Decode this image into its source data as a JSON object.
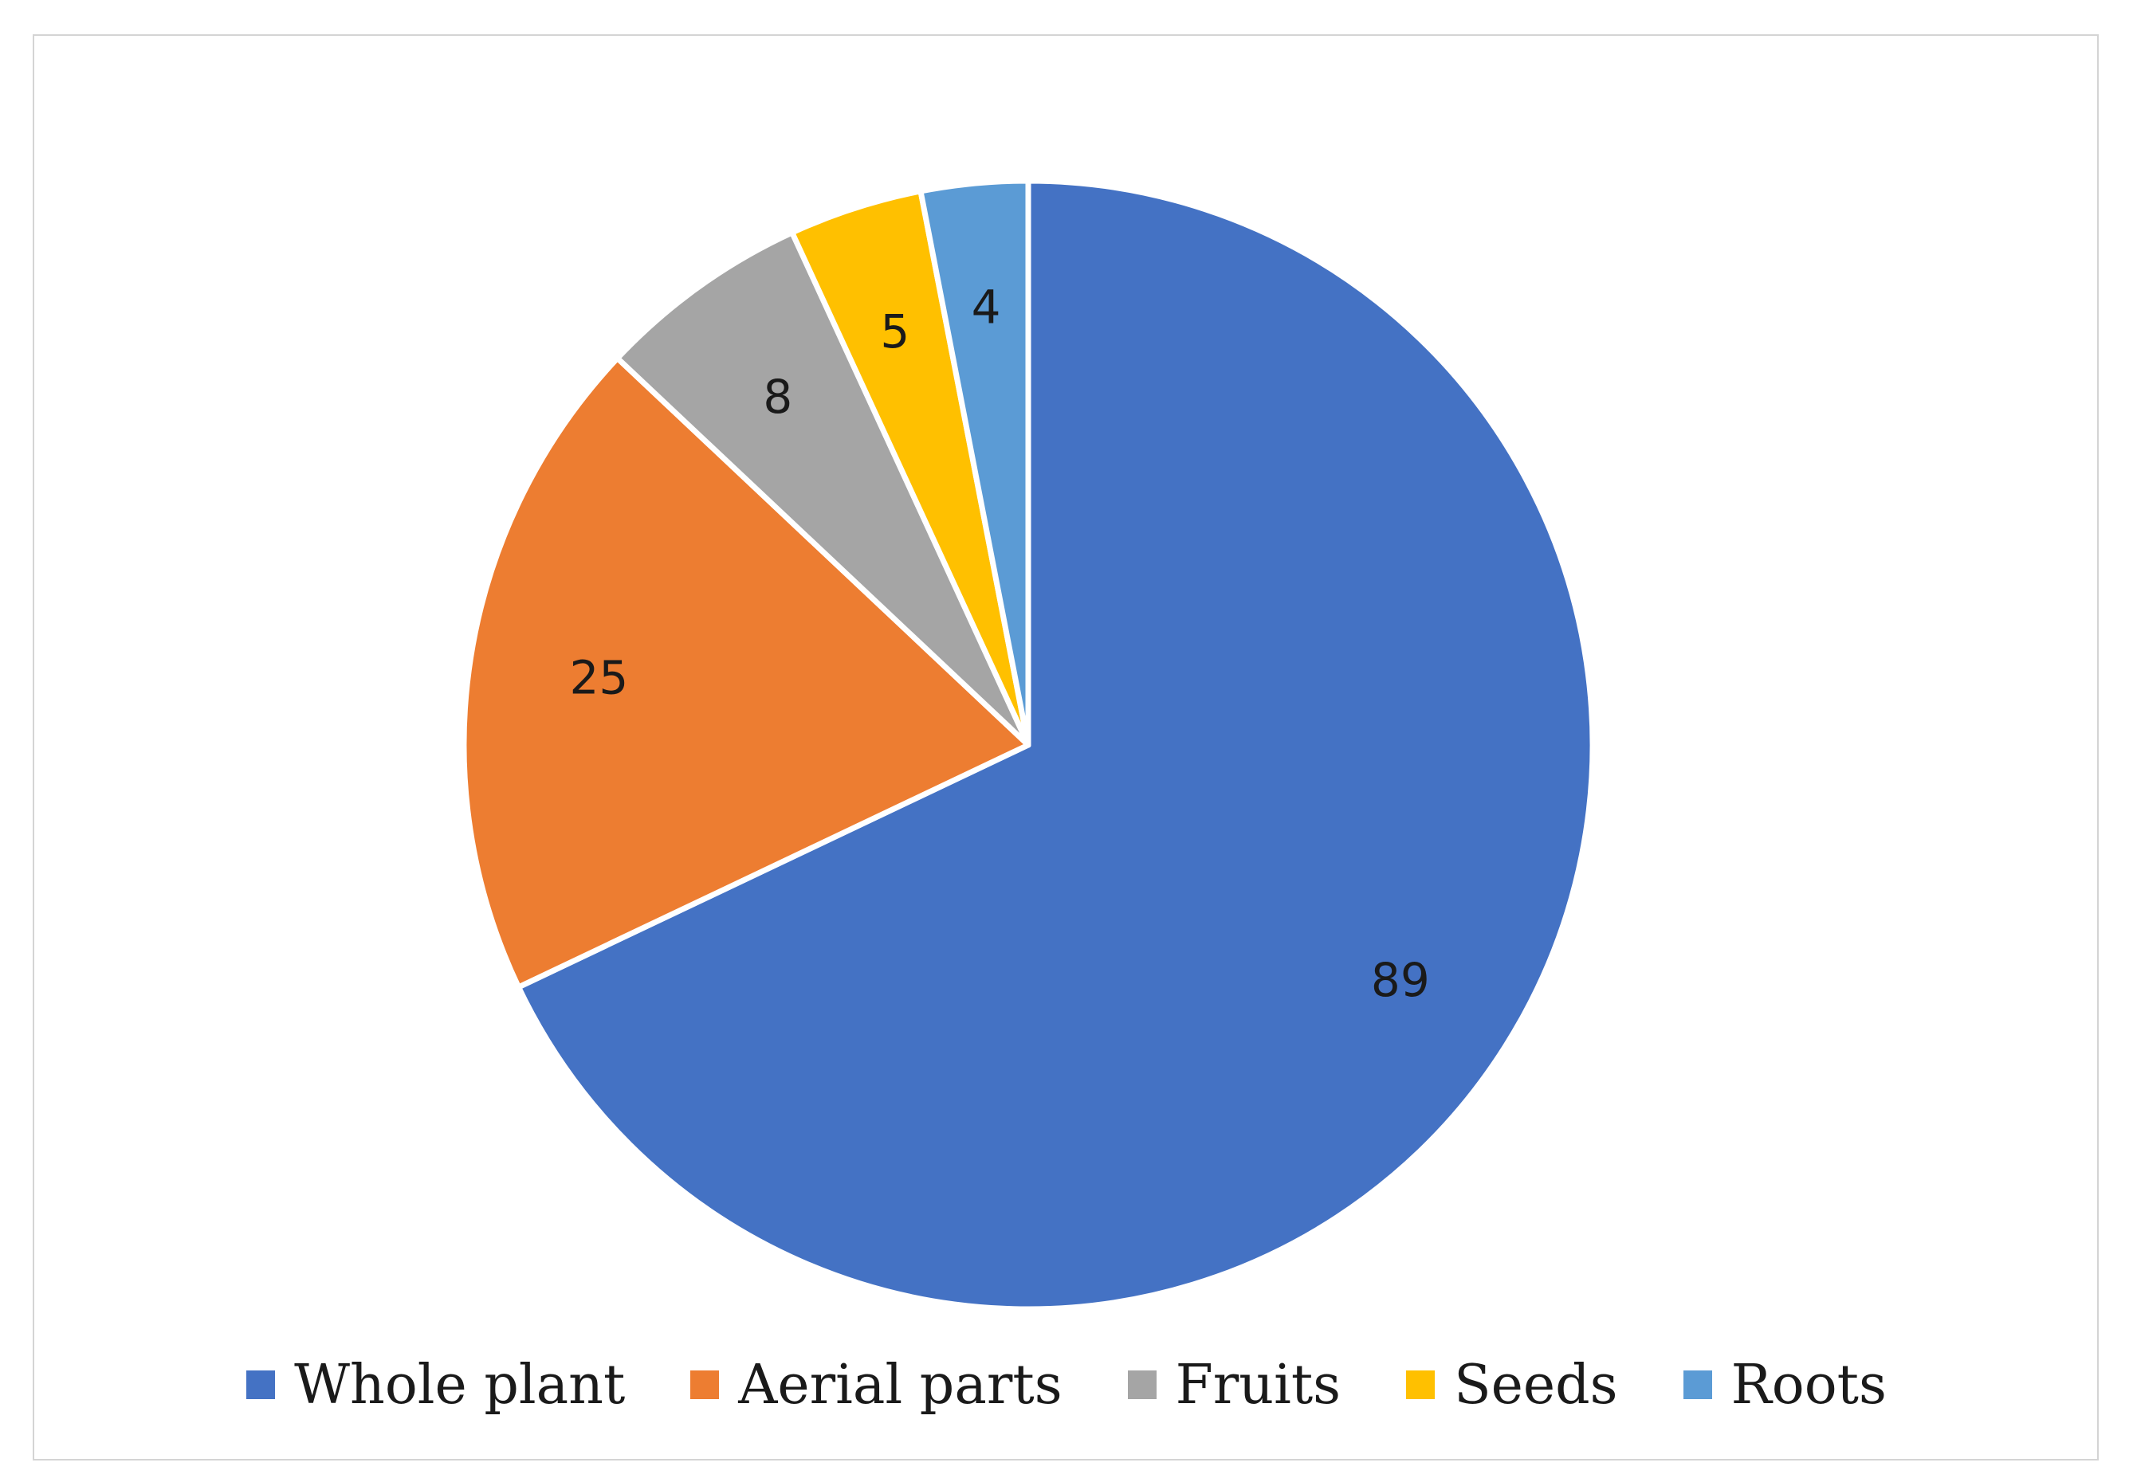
{
  "chart_data": {
    "type": "pie",
    "title": "",
    "categories": [
      "Whole plant",
      "Aerial parts",
      "Fruits",
      "Seeds",
      "Roots"
    ],
    "values": [
      89,
      25,
      8,
      5,
      4
    ],
    "colors": [
      "#4472C4",
      "#ED7D31",
      "#A5A5A5",
      "#FFC000",
      "#5B9BD5"
    ],
    "data_labels": [
      "89",
      "25",
      "8",
      "5",
      "4"
    ],
    "start_angle": "12 o'clock",
    "direction": "clockwise",
    "legend_position": "bottom"
  }
}
